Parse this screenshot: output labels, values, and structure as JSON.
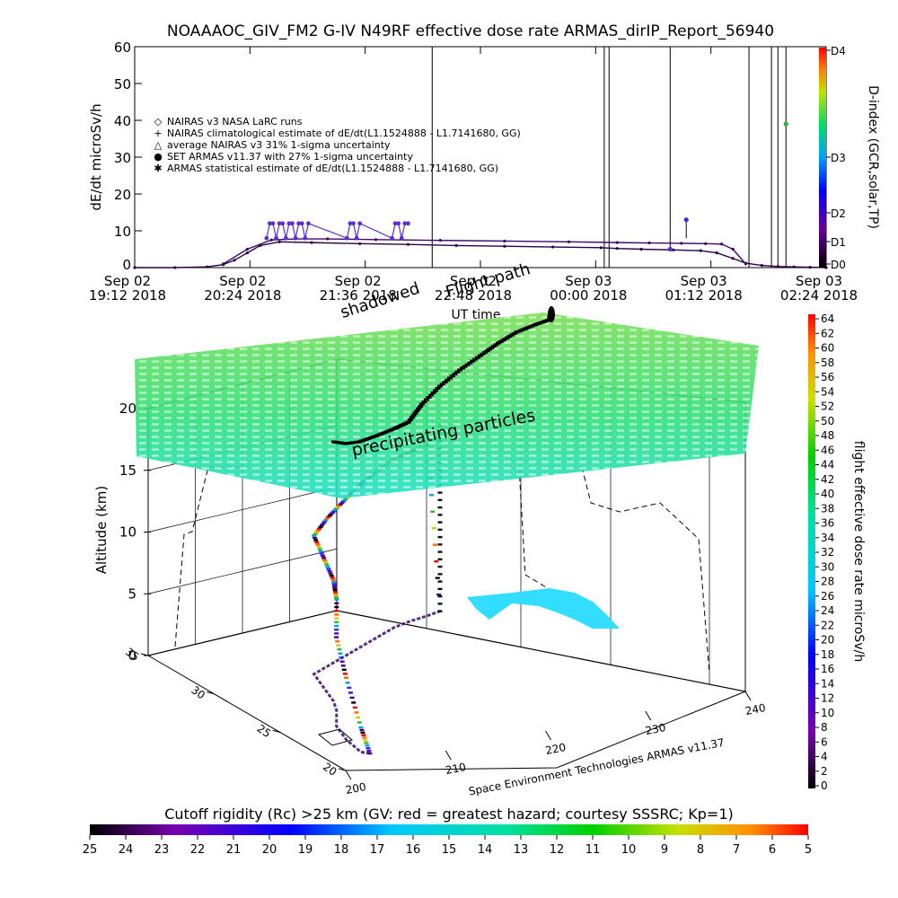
{
  "chart_data": [
    {
      "type": "line",
      "title": "NOAAAOC_GIV_FM2 G-IV    N49RF   effective dose rate ARMAS_dirIP_Report_56940",
      "ylabel": "dE/dt microSv/h",
      "ylim": [
        0,
        60
      ],
      "yticks": [
        "0",
        "10",
        "20",
        "30",
        "40",
        "50",
        "60"
      ],
      "xlim": [
        0,
        430
      ],
      "xticks": [
        {
          "line1": "Sep 02",
          "line2": "19:12 2018"
        },
        {
          "line1": "Sep 02",
          "line2": "20:24 2018"
        },
        {
          "line1": "Sep 02",
          "line2": "21:36 2018"
        },
        {
          "line1": "Sep 02",
          "line2": "22:48 2018"
        },
        {
          "line1": "Sep 03",
          "line2": "00:00 2018"
        },
        {
          "line1": "Sep 03",
          "line2": "01:12 2018"
        },
        {
          "line1": "Sep 03",
          "line2": "02:24 2018"
        }
      ],
      "xlabel": "UT time",
      "legend": [
        {
          "symbol": "◇",
          "text": "NAIRAS v3 NASA LaRC runs"
        },
        {
          "symbol": "+",
          "text": "NAIRAS climatological estimate of dE/dt(L1.1524888 - L1.7141680, GG)"
        },
        {
          "symbol": "△",
          "text": "average NAIRAS v3 31% 1-sigma uncertainty"
        },
        {
          "symbol": "●",
          "text": "SET ARMAS v11.37 with 27% 1-sigma uncertainty"
        },
        {
          "symbol": "✱",
          "text": "ARMAS statistical estimate of dE/dt(L1.1524888 - L1.7141680, GG)"
        }
      ],
      "series": [
        {
          "x": [
            0,
            25,
            45,
            55,
            62,
            70,
            78,
            90,
            110,
            140,
            170,
            200,
            230,
            260,
            290,
            300,
            315,
            335,
            352,
            362,
            372,
            380,
            390,
            400,
            410,
            420,
            430
          ],
          "y": [
            0,
            0,
            0.2,
            0.8,
            2,
            4,
            6,
            7,
            6.8,
            6.5,
            6.3,
            6,
            5.8,
            5.6,
            5.4,
            5.2,
            5,
            4.8,
            4.6,
            4,
            2.5,
            1.2,
            0.6,
            0.3,
            0.2,
            0.1,
            0
          ]
        },
        {
          "x": [
            55,
            70,
            85,
            100,
            120,
            150,
            190,
            230,
            270,
            300,
            320,
            340,
            355,
            365,
            372,
            380
          ],
          "y": [
            1,
            5,
            7.5,
            7.8,
            7.8,
            7.6,
            7.4,
            7.2,
            7,
            6.8,
            6.7,
            6.6,
            6.5,
            6.4,
            5,
            1
          ]
        },
        {
          "x": [
            82,
            84,
            86,
            88,
            90,
            92,
            94,
            96,
            98,
            100,
            102,
            104,
            106,
            108,
            132,
            134,
            136,
            138,
            140,
            160,
            162,
            164,
            166,
            168,
            170
          ],
          "y": [
            8,
            12,
            12,
            8,
            12,
            12,
            8,
            12,
            12,
            8,
            12,
            12,
            8,
            12,
            8,
            12,
            12,
            8,
            12,
            8,
            12,
            12,
            8,
            12,
            12
          ]
        }
      ],
      "spikes": [
        {
          "x": 185,
          "ylo": 0,
          "yhi": 60
        },
        {
          "x": 292,
          "ylo": 0,
          "yhi": 60
        },
        {
          "x": 295,
          "ylo": 0,
          "yhi": 60
        },
        {
          "x": 333,
          "ylo": 5,
          "yhi": 60
        },
        {
          "x": 343,
          "ylo": 8,
          "yhi": 13
        },
        {
          "x": 382,
          "ylo": 0,
          "yhi": 60
        },
        {
          "x": 396,
          "ylo": 0,
          "yhi": 60
        },
        {
          "x": 400,
          "ylo": 0,
          "yhi": 60
        },
        {
          "x": 405,
          "ylo": 0,
          "yhi": 60
        }
      ],
      "d_index": {
        "label": "D-index (GCR,solar,TP)",
        "ticks": [
          "D0",
          "D1",
          "D2",
          "D3",
          "D4"
        ]
      }
    },
    {
      "type": "scatter",
      "ylabel": "Altitude (km)",
      "zticks": [
        "0",
        "5",
        "10",
        "15",
        "20"
      ],
      "zlim": [
        0,
        20
      ],
      "lon_ticks": [
        "200",
        "210",
        "220",
        "230",
        "240"
      ],
      "lat_ticks": [
        "20",
        "25",
        "30",
        "35"
      ],
      "xlim": [
        200,
        240
      ],
      "ylim": [
        20,
        35
      ],
      "credit": "Space Environment Technologies ARMAS v11.37",
      "annotations": [
        {
          "text": "precipitating particles"
        },
        {
          "text": "shadowed"
        },
        {
          "text": "Flight path"
        }
      ],
      "flight_track": {
        "lon": [
          204,
          203.5,
          204,
          205,
          207,
          208,
          209,
          210,
          212,
          214,
          216,
          218,
          220,
          222,
          224,
          226,
          227.5
        ],
        "lat": [
          21.2,
          21.5,
          23,
          24.5,
          26,
          27,
          28.5,
          30,
          30.5,
          31,
          31.5,
          32,
          32.5,
          33,
          33.3,
          33.5,
          33.7
        ],
        "alt": [
          0,
          2,
          5,
          7.2,
          9,
          9.8,
          10.5,
          11.2,
          12,
          12.5,
          13,
          13.3,
          13.5,
          13.6,
          13.7,
          13.8,
          0
        ]
      },
      "colorbar": {
        "label": "flight effective dose rate microSv/h",
        "ticks": [
          "0",
          "2",
          "4",
          "6",
          "8",
          "10",
          "12",
          "14",
          "16",
          "18",
          "20",
          "22",
          "24",
          "26",
          "28",
          "30",
          "32",
          "34",
          "36",
          "38",
          "40",
          "42",
          "44",
          "46",
          "48",
          "50",
          "52",
          "54",
          "56",
          "58",
          "60",
          "62",
          "64"
        ]
      },
      "rigidity_bar": {
        "label": "Cutoff rigidity (Rc) >25 km (GV: red = greatest hazard; courtesy SSSRC; Kp=1)",
        "ticks": [
          "25",
          "24",
          "23",
          "22",
          "21",
          "20",
          "19",
          "18",
          "17",
          "16",
          "15",
          "14",
          "13",
          "12",
          "11",
          "10",
          "9",
          "8",
          "7",
          "6",
          "5"
        ]
      }
    }
  ]
}
